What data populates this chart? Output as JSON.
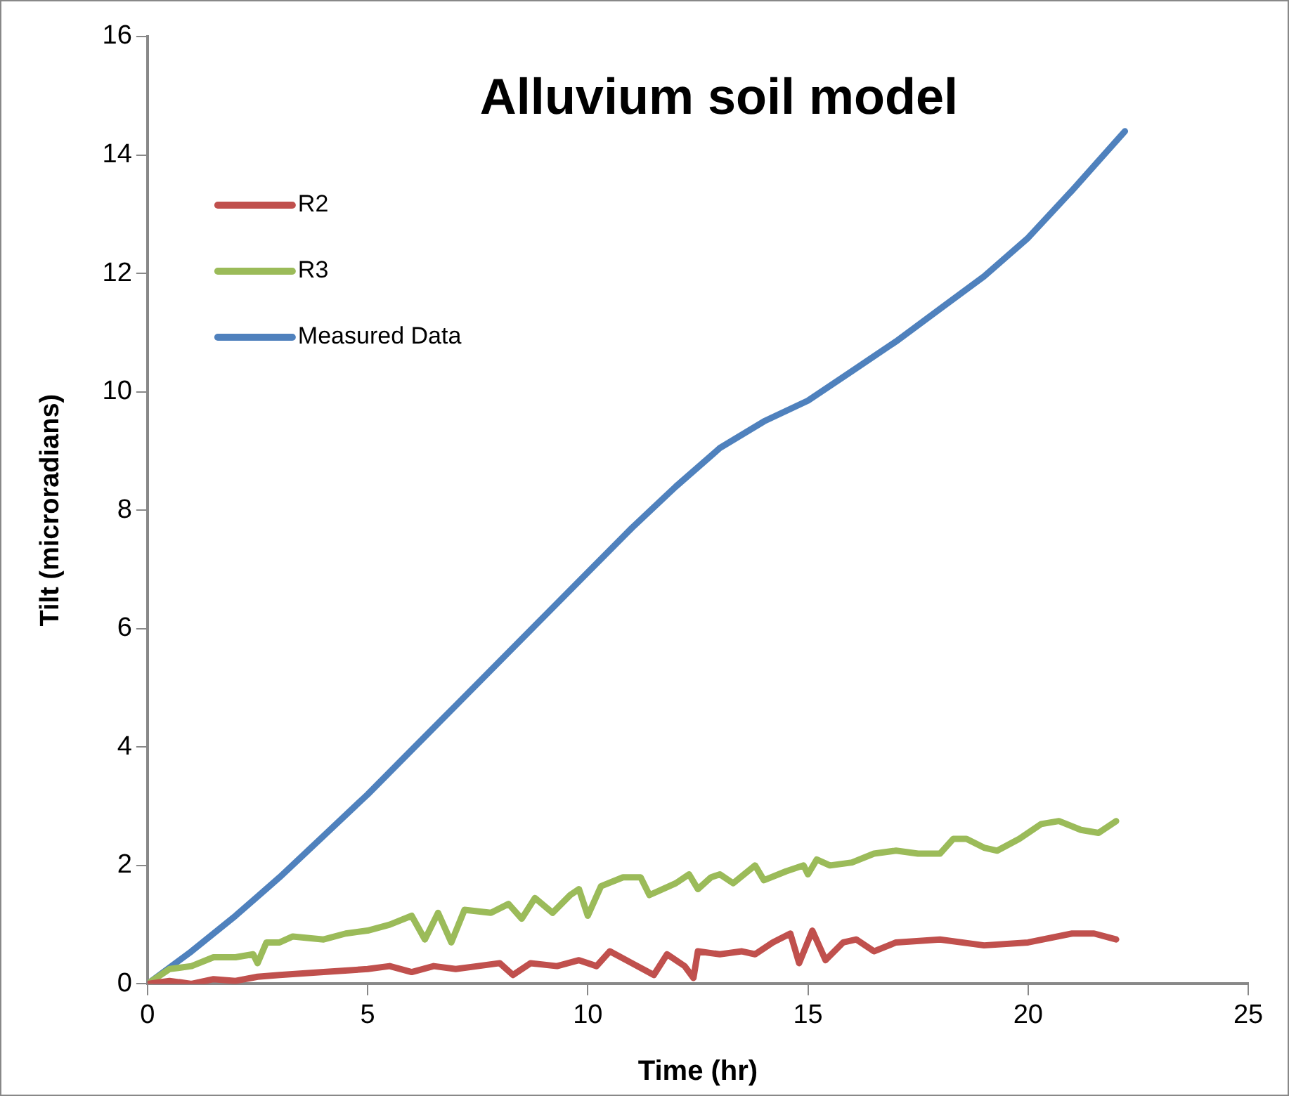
{
  "chart_data": {
    "type": "line",
    "title": "Alluvium soil model",
    "xlabel": "Time (hr)",
    "ylabel": "Tilt (microradians)",
    "xlim": [
      0,
      25
    ],
    "xticks": [
      0,
      5,
      10,
      15,
      20,
      25
    ],
    "ylim": [
      0,
      16
    ],
    "yticks": [
      0,
      2,
      4,
      6,
      8,
      10,
      12,
      14,
      16
    ],
    "grid": false,
    "legend": "top left",
    "marker": "none",
    "line_style": "solid",
    "series": [
      {
        "name": "R2",
        "color": "#c0504d",
        "x": [
          0,
          0.5,
          1,
          1.5,
          2,
          2.5,
          3,
          4,
          5,
          5.5,
          6,
          6.5,
          7,
          7.5,
          8,
          8.3,
          8.7,
          9.3,
          9.8,
          10.2,
          10.5,
          11,
          11.5,
          11.8,
          12.2,
          12.4,
          12.5,
          13,
          13.5,
          13.8,
          14.2,
          14.6,
          14.8,
          15.1,
          15.4,
          15.8,
          16.1,
          16.5,
          17,
          18,
          19,
          20,
          21,
          21.5,
          22
        ],
        "values": [
          0,
          0.05,
          0,
          0.08,
          0.05,
          0.12,
          0.15,
          0.2,
          0.25,
          0.3,
          0.2,
          0.3,
          0.25,
          0.3,
          0.35,
          0.15,
          0.35,
          0.3,
          0.4,
          0.3,
          0.55,
          0.35,
          0.15,
          0.5,
          0.3,
          0.1,
          0.55,
          0.5,
          0.55,
          0.5,
          0.7,
          0.85,
          0.35,
          0.9,
          0.4,
          0.7,
          0.75,
          0.55,
          0.7,
          0.75,
          0.65,
          0.7,
          0.85,
          0.85,
          0.75
        ]
      },
      {
        "name": "R3",
        "color": "#9bbb59",
        "x": [
          0,
          0.5,
          1,
          1.5,
          2,
          2.4,
          2.5,
          2.7,
          3,
          3.3,
          4,
          4.5,
          5,
          5.5,
          6,
          6.3,
          6.6,
          6.9,
          7.2,
          7.8,
          8.2,
          8.5,
          8.8,
          9.2,
          9.6,
          9.8,
          10,
          10.3,
          10.8,
          11.2,
          11.4,
          12,
          12.3,
          12.5,
          12.8,
          13,
          13.3,
          13.8,
          14,
          14.5,
          14.9,
          15,
          15.2,
          15.5,
          16,
          16.5,
          17,
          17.5,
          18,
          18.3,
          18.6,
          19,
          19.3,
          19.8,
          20.3,
          20.7,
          21.2,
          21.6,
          22
        ],
        "values": [
          0,
          0.25,
          0.3,
          0.45,
          0.45,
          0.5,
          0.35,
          0.7,
          0.7,
          0.8,
          0.75,
          0.85,
          0.9,
          1,
          1.15,
          0.75,
          1.2,
          0.7,
          1.25,
          1.2,
          1.35,
          1.1,
          1.45,
          1.2,
          1.5,
          1.6,
          1.15,
          1.65,
          1.8,
          1.8,
          1.5,
          1.7,
          1.85,
          1.6,
          1.8,
          1.85,
          1.7,
          2,
          1.75,
          1.9,
          2,
          1.85,
          2.1,
          2,
          2.05,
          2.2,
          2.25,
          2.2,
          2.2,
          2.45,
          2.45,
          2.3,
          2.25,
          2.45,
          2.7,
          2.75,
          2.6,
          2.55,
          2.75
        ]
      },
      {
        "name": "Measured Data",
        "color": "#4f81bd",
        "x": [
          0,
          1,
          2,
          3,
          4,
          5,
          6,
          7,
          8,
          9,
          10,
          11,
          12,
          13,
          14,
          15,
          16,
          17,
          18,
          19,
          20,
          21,
          22.2
        ],
        "values": [
          0,
          0.55,
          1.15,
          1.8,
          2.5,
          3.2,
          3.95,
          4.7,
          5.45,
          6.2,
          6.95,
          7.7,
          8.4,
          9.05,
          9.5,
          9.85,
          10.35,
          10.85,
          11.4,
          11.95,
          12.6,
          13.4,
          14.4
        ]
      }
    ]
  }
}
